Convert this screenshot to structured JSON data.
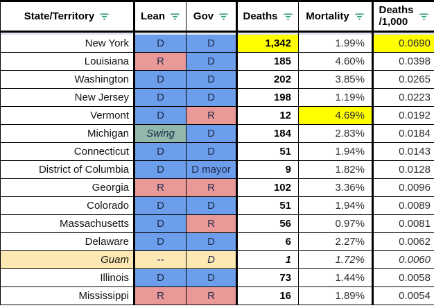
{
  "palette": {
    "dem_blue": "#6d9eeb",
    "rep_red": "#ea9999",
    "swing_teal": "#92b8ac",
    "territory_cream": "#fce8b2",
    "highlight_yellow": "#ffff00",
    "filter_icon_green": "#3ba272",
    "header_divider_gray": "#e0e3ed",
    "party_text_navy": "#1b2a4a",
    "border_black": "#000000"
  },
  "table": {
    "columns": [
      {
        "label": "State/Territory"
      },
      {
        "label": "Lean"
      },
      {
        "label": "Gov"
      },
      {
        "label": "Deaths"
      },
      {
        "label": "Mortality"
      },
      {
        "label": "Deaths",
        "label2": "/1,000"
      }
    ],
    "rows": [
      {
        "state": "New York",
        "lean": "D",
        "lean_bg": "dem",
        "gov": "D",
        "gov_bg": "dem",
        "deaths": "1,342",
        "deaths_bg": "hl",
        "mortality": "1.99%",
        "per_1000": "0.0690",
        "per_1000_bg": "hl"
      },
      {
        "state": "Louisiana",
        "lean": "R",
        "lean_bg": "rep",
        "gov": "D",
        "gov_bg": "dem",
        "deaths": "185",
        "mortality": "4.60%",
        "per_1000": "0.0398"
      },
      {
        "state": "Washington",
        "lean": "D",
        "lean_bg": "dem",
        "gov": "D",
        "gov_bg": "dem",
        "deaths": "202",
        "mortality": "3.85%",
        "per_1000": "0.0265"
      },
      {
        "state": "New Jersey",
        "lean": "D",
        "lean_bg": "dem",
        "gov": "D",
        "gov_bg": "dem",
        "deaths": "198",
        "mortality": "1.19%",
        "per_1000": "0.0223"
      },
      {
        "state": "Vermont",
        "lean": "D",
        "lean_bg": "dem",
        "gov": "R",
        "gov_bg": "rep",
        "deaths": "12",
        "mortality": "4.69%",
        "mortality_bg": "hl",
        "per_1000": "0.0192"
      },
      {
        "state": "Michigan",
        "lean": "Swing",
        "lean_bg": "swing",
        "lean_italic": true,
        "gov": "D",
        "gov_bg": "dem",
        "deaths": "184",
        "mortality": "2.83%",
        "per_1000": "0.0184"
      },
      {
        "state": "Connecticut",
        "lean": "D",
        "lean_bg": "dem",
        "gov": "D",
        "gov_bg": "dem",
        "deaths": "51",
        "mortality": "1.94%",
        "per_1000": "0.0143"
      },
      {
        "state": "District of Columbia",
        "lean": "D",
        "lean_bg": "dem",
        "gov": "D mayor",
        "gov_bg": "dem",
        "deaths": "9",
        "mortality": "1.82%",
        "per_1000": "0.0128"
      },
      {
        "state": "Georgia",
        "lean": "R",
        "lean_bg": "rep",
        "gov": "R",
        "gov_bg": "rep",
        "deaths": "102",
        "mortality": "3.36%",
        "per_1000": "0.0096"
      },
      {
        "state": "Colorado",
        "lean": "D",
        "lean_bg": "dem",
        "gov": "D",
        "gov_bg": "dem",
        "deaths": "51",
        "mortality": "1.94%",
        "per_1000": "0.0089"
      },
      {
        "state": "Massachusetts",
        "lean": "D",
        "lean_bg": "dem",
        "gov": "R",
        "gov_bg": "rep",
        "deaths": "56",
        "mortality": "0.97%",
        "per_1000": "0.0081"
      },
      {
        "state": "Delaware",
        "lean": "D",
        "lean_bg": "dem",
        "gov": "D",
        "gov_bg": "dem",
        "deaths": "6",
        "mortality": "2.27%",
        "per_1000": "0.0062"
      },
      {
        "state": "Guam",
        "italic": true,
        "state_bg": "terr",
        "lean": "--",
        "lean_bg": "terr",
        "gov": "D",
        "gov_bg": "terr",
        "deaths": "1",
        "mortality": "1.72%",
        "per_1000": "0.0060"
      },
      {
        "state": "Illinois",
        "lean": "D",
        "lean_bg": "dem",
        "gov": "D",
        "gov_bg": "dem",
        "deaths": "73",
        "mortality": "1.44%",
        "per_1000": "0.0058"
      },
      {
        "state": "Mississippi",
        "lean": "R",
        "lean_bg": "rep",
        "gov": "R",
        "gov_bg": "rep",
        "deaths": "16",
        "mortality": "1.89%",
        "per_1000": "0.0054"
      }
    ]
  }
}
